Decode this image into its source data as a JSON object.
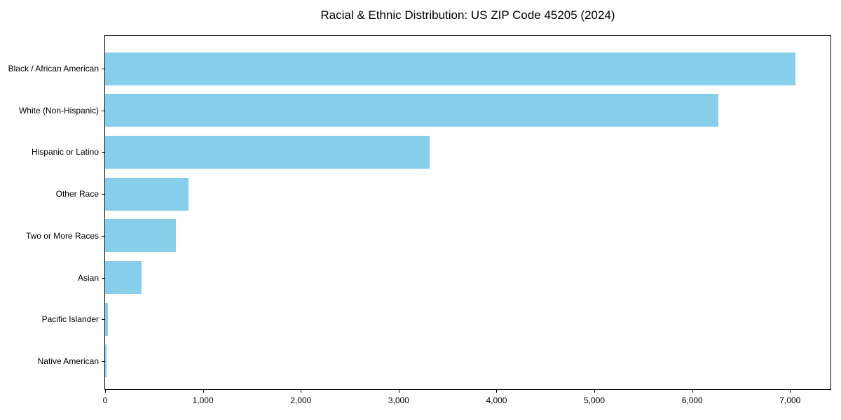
{
  "page": {
    "background_color": "#ffffff"
  },
  "chart_data": {
    "type": "bar",
    "orientation": "horizontal",
    "title": "Racial & Ethnic Distribution: US ZIP Code 45205 (2024)",
    "categories": [
      "Black / African American",
      "White (Non-Hispanic)",
      "Hispanic or Latino",
      "Other Race",
      "Two or More Races",
      "Asian",
      "Pacific Islander",
      "Native American"
    ],
    "values": [
      7055,
      6270,
      3315,
      855,
      725,
      370,
      30,
      15
    ],
    "xlabel": "",
    "ylabel": "",
    "xlim": [
      0,
      7413
    ],
    "x_ticks": [
      {
        "value": 0,
        "label": "0"
      },
      {
        "value": 1000,
        "label": "1,000"
      },
      {
        "value": 2000,
        "label": "2,000"
      },
      {
        "value": 3000,
        "label": "3,000"
      },
      {
        "value": 4000,
        "label": "4,000"
      },
      {
        "value": 5000,
        "label": "5,000"
      },
      {
        "value": 6000,
        "label": "6,000"
      },
      {
        "value": 7000,
        "label": "7,000"
      }
    ],
    "bar_color": "#87CEEB",
    "axis_color": "#000000",
    "text_color": "#000000",
    "grid": false,
    "legend": "none"
  }
}
